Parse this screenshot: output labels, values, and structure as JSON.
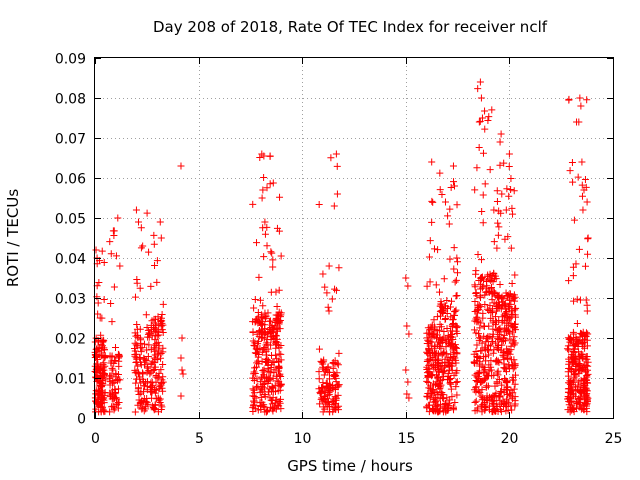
{
  "chart_data": {
    "type": "scatter",
    "title": "Day 208 of 2018, Rate Of TEC Index for receiver nclf",
    "xlabel": "GPS time / hours",
    "ylabel": "ROTI / TECUs",
    "xlim": [
      0,
      25
    ],
    "ylim": [
      0,
      0.09
    ],
    "xticks": [
      0,
      5,
      10,
      15,
      20,
      25
    ],
    "xtick_labels": [
      "0",
      "5",
      "10",
      "15",
      "20",
      "25"
    ],
    "yticks": [
      0,
      0.01,
      0.02,
      0.03,
      0.04,
      0.05,
      0.06,
      0.07,
      0.08,
      0.09
    ],
    "ytick_labels": [
      "0",
      "0.01",
      "0.02",
      "0.03",
      "0.04",
      "0.05",
      "0.06",
      "0.07",
      "0.08",
      "0.09"
    ],
    "grid": true,
    "marker": "+",
    "color": "#ff0000",
    "clusters": [
      {
        "x_range": [
          0.0,
          0.5
        ],
        "y_core": 0.018,
        "y_max": 0.042,
        "count": 150
      },
      {
        "x_range": [
          0.7,
          1.2
        ],
        "y_core": 0.015,
        "y_max": 0.05,
        "count": 70
      },
      {
        "x_range": [
          1.9,
          2.7
        ],
        "y_core": 0.022,
        "y_max": 0.052,
        "count": 110
      },
      {
        "x_range": [
          2.7,
          3.3
        ],
        "y_core": 0.024,
        "y_max": 0.049,
        "count": 110
      },
      {
        "x_range": [
          7.6,
          9.0
        ],
        "y_core": 0.025,
        "y_max": 0.066,
        "count": 300
      },
      {
        "x_range": [
          10.8,
          11.8
        ],
        "y_core": 0.013,
        "y_max": 0.066,
        "count": 120
      },
      {
        "x_range": [
          16.0,
          16.6
        ],
        "y_core": 0.022,
        "y_max": 0.064,
        "count": 150
      },
      {
        "x_range": [
          16.6,
          17.5
        ],
        "y_core": 0.028,
        "y_max": 0.063,
        "count": 200
      },
      {
        "x_range": [
          18.3,
          19.4
        ],
        "y_core": 0.035,
        "y_max": 0.084,
        "count": 260
      },
      {
        "x_range": [
          19.4,
          20.3
        ],
        "y_core": 0.03,
        "y_max": 0.066,
        "count": 240
      },
      {
        "x_range": [
          22.8,
          23.8
        ],
        "y_core": 0.02,
        "y_max": 0.08,
        "count": 260
      }
    ],
    "points": [
      [
        0.05,
        0.042
      ],
      [
        0.1,
        0.04
      ],
      [
        0.25,
        0.025
      ],
      [
        1.1,
        0.05
      ],
      [
        1.2,
        0.038
      ],
      [
        2.0,
        0.052
      ],
      [
        2.1,
        0.049
      ],
      [
        2.3,
        0.043
      ],
      [
        3.15,
        0.049
      ],
      [
        3.2,
        0.045
      ],
      [
        4.15,
        0.063
      ],
      [
        4.2,
        0.02
      ],
      [
        4.15,
        0.015
      ],
      [
        4.2,
        0.012
      ],
      [
        4.25,
        0.011
      ],
      [
        4.15,
        0.0055
      ],
      [
        8.05,
        0.066
      ],
      [
        8.15,
        0.0655
      ],
      [
        8.1,
        0.057
      ],
      [
        8.2,
        0.049
      ],
      [
        11.65,
        0.066
      ],
      [
        11.7,
        0.056
      ],
      [
        11.55,
        0.053
      ],
      [
        11.0,
        0.036
      ],
      [
        11.3,
        0.038
      ],
      [
        15.0,
        0.035
      ],
      [
        15.1,
        0.033
      ],
      [
        15.05,
        0.023
      ],
      [
        15.15,
        0.021
      ],
      [
        15.0,
        0.012
      ],
      [
        15.1,
        0.009
      ],
      [
        15.05,
        0.006
      ],
      [
        15.15,
        0.005
      ],
      [
        16.25,
        0.064
      ],
      [
        17.3,
        0.063
      ],
      [
        17.35,
        0.058
      ],
      [
        18.6,
        0.084
      ],
      [
        18.65,
        0.08
      ],
      [
        18.7,
        0.075
      ],
      [
        18.55,
        0.074
      ],
      [
        19.6,
        0.071
      ],
      [
        19.55,
        0.069
      ],
      [
        20.0,
        0.066
      ],
      [
        19.25,
        0.052
      ],
      [
        23.4,
        0.08
      ],
      [
        23.45,
        0.078
      ],
      [
        23.35,
        0.074
      ],
      [
        23.5,
        0.064
      ],
      [
        23.6,
        0.057
      ],
      [
        23.55,
        0.052
      ],
      [
        23.75,
        0.054
      ],
      [
        23.8,
        0.045
      ]
    ]
  }
}
